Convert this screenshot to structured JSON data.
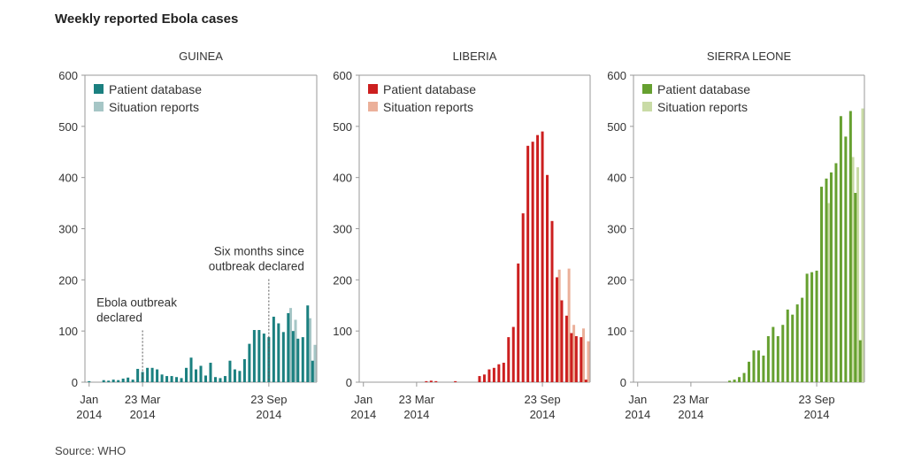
{
  "title": "Weekly reported Ebola cases",
  "source": "Source: WHO",
  "legend_labels": [
    "Patient database",
    "Situation reports"
  ],
  "colors": {
    "guinea": {
      "patient": "#1b8080",
      "situation": "#a6c6c6"
    },
    "liberia": {
      "patient": "#cc1f1f",
      "situation": "#ebb09a"
    },
    "sierra_leone": {
      "patient": "#66a030",
      "situation": "#c9dba6"
    },
    "axis": "#999999",
    "text": "#333333"
  },
  "chart_data": [
    {
      "type": "bar",
      "title": "GUINEA",
      "ylim": [
        0,
        600
      ],
      "yticks": [
        0,
        100,
        200,
        300,
        400,
        500,
        600
      ],
      "xtick_labels": [
        {
          "week": 0,
          "lines": [
            "Jan",
            "2014"
          ]
        },
        {
          "week": 11,
          "lines": [
            "23 Mar",
            "2014"
          ]
        },
        {
          "week": 37,
          "lines": [
            "23 Sep",
            "2014"
          ]
        }
      ],
      "legend": [
        "Patient database",
        "Situation reports"
      ],
      "legend_position": "top-left",
      "annotations": [
        {
          "week": 11,
          "y": 115,
          "lines": [
            "Ebola outbreak",
            "declared"
          ],
          "align": "start"
        },
        {
          "week": 37,
          "y": 215,
          "lines": [
            "Six months since",
            "outbreak declared"
          ],
          "align": "end"
        }
      ],
      "series": [
        {
          "name": "Patient database",
          "values": [
            2,
            0,
            0,
            4,
            3,
            5,
            4,
            7,
            9,
            5,
            26,
            20,
            28,
            28,
            25,
            15,
            12,
            12,
            10,
            8,
            28,
            48,
            25,
            32,
            13,
            38,
            10,
            8,
            12,
            42,
            25,
            22,
            45,
            75,
            102,
            102,
            95,
            88,
            128,
            115,
            98,
            135,
            100,
            85,
            88,
            150,
            42
          ]
        },
        {
          "name": "Situation reports",
          "values": [
            0,
            0,
            0,
            0,
            0,
            0,
            0,
            0,
            0,
            0,
            0,
            0,
            0,
            0,
            0,
            0,
            0,
            0,
            0,
            0,
            0,
            0,
            0,
            0,
            0,
            0,
            0,
            0,
            0,
            0,
            0,
            0,
            0,
            0,
            0,
            0,
            0,
            0,
            0,
            0,
            0,
            145,
            122,
            0,
            0,
            125,
            73
          ]
        }
      ]
    },
    {
      "type": "bar",
      "title": "LIBERIA",
      "ylim": [
        0,
        600
      ],
      "yticks": [
        0,
        100,
        200,
        300,
        400,
        500,
        600
      ],
      "xtick_labels": [
        {
          "week": 0,
          "lines": [
            "Jan",
            "2014"
          ]
        },
        {
          "week": 11,
          "lines": [
            "23 Mar",
            "2014"
          ]
        },
        {
          "week": 37,
          "lines": [
            "23 Sep",
            "2014"
          ]
        }
      ],
      "legend": [
        "Patient database",
        "Situation reports"
      ],
      "legend_position": "top-left",
      "series": [
        {
          "name": "Patient database",
          "values": [
            0,
            0,
            0,
            0,
            0,
            0,
            0,
            0,
            0,
            0,
            0,
            0,
            0,
            2,
            3,
            2,
            0,
            0,
            0,
            2,
            0,
            0,
            0,
            0,
            12,
            15,
            25,
            28,
            35,
            38,
            88,
            108,
            232,
            330,
            462,
            470,
            483,
            490,
            405,
            315,
            205,
            160,
            130,
            96,
            90,
            88,
            5
          ]
        },
        {
          "name": "Situation reports",
          "values": [
            0,
            0,
            0,
            0,
            0,
            0,
            0,
            0,
            0,
            0,
            0,
            0,
            0,
            0,
            0,
            0,
            0,
            0,
            0,
            0,
            0,
            0,
            0,
            0,
            0,
            0,
            0,
            0,
            0,
            0,
            0,
            0,
            0,
            0,
            0,
            0,
            0,
            0,
            0,
            0,
            220,
            0,
            222,
            112,
            0,
            105,
            80
          ]
        }
      ]
    },
    {
      "type": "bar",
      "title": "SIERRA LEONE",
      "ylim": [
        0,
        600
      ],
      "yticks": [
        0,
        100,
        200,
        300,
        400,
        500,
        600
      ],
      "xtick_labels": [
        {
          "week": 0,
          "lines": [
            "Jan",
            "2014"
          ]
        },
        {
          "week": 11,
          "lines": [
            "23 Mar",
            "2014"
          ]
        },
        {
          "week": 37,
          "lines": [
            "23 Sep",
            "2014"
          ]
        }
      ],
      "legend": [
        "Patient database",
        "Situation reports"
      ],
      "legend_position": "top-left",
      "series": [
        {
          "name": "Patient database",
          "values": [
            0,
            0,
            0,
            0,
            0,
            0,
            0,
            0,
            0,
            0,
            0,
            0,
            0,
            0,
            0,
            0,
            0,
            0,
            0,
            3,
            5,
            10,
            18,
            40,
            62,
            62,
            52,
            90,
            108,
            90,
            112,
            142,
            132,
            152,
            165,
            212,
            215,
            218,
            382,
            398,
            410,
            428,
            520,
            480,
            530,
            370,
            82
          ]
        },
        {
          "name": "Situation reports",
          "values": [
            0,
            0,
            0,
            0,
            0,
            0,
            0,
            0,
            0,
            0,
            0,
            0,
            0,
            0,
            0,
            0,
            0,
            0,
            0,
            0,
            0,
            0,
            0,
            0,
            0,
            0,
            0,
            0,
            0,
            0,
            0,
            0,
            0,
            0,
            0,
            0,
            0,
            0,
            0,
            350,
            0,
            0,
            0,
            0,
            440,
            420,
            535
          ]
        }
      ]
    }
  ]
}
